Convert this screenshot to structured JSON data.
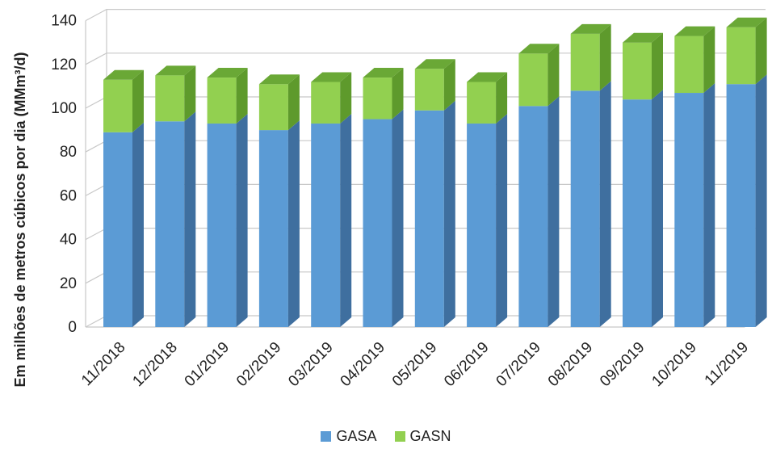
{
  "chart_data": {
    "type": "bar",
    "stacked": true,
    "three_d": true,
    "categories": [
      "11/2018",
      "12/2018",
      "01/2019",
      "02/2019",
      "03/2019",
      "04/2019",
      "05/2019",
      "06/2019",
      "07/2019",
      "08/2019",
      "09/2019",
      "10/2019",
      "11/2019"
    ],
    "series": [
      {
        "name": "GASA",
        "color": "#5b9bd5",
        "side_color": "#3f6f9f",
        "top_color": "#7fb0de",
        "values": [
          89,
          94,
          93,
          90,
          93,
          95,
          99,
          93,
          101,
          108,
          104,
          107,
          111
        ]
      },
      {
        "name": "GASN",
        "color": "#92d050",
        "side_color": "#5e9a2c",
        "top_color": "#6aa836",
        "values": [
          24,
          21,
          21,
          21,
          19,
          19,
          19,
          19,
          24,
          26,
          26,
          26,
          26
        ]
      }
    ],
    "ylabel": "Em milhões de metros cúbicos por dia (MMm³/d)",
    "yticks": [
      "0",
      "20",
      "40",
      "60",
      "80",
      "100",
      "120",
      "140"
    ],
    "ylim": [
      0,
      140
    ],
    "grid": true,
    "legend_position": "bottom"
  }
}
